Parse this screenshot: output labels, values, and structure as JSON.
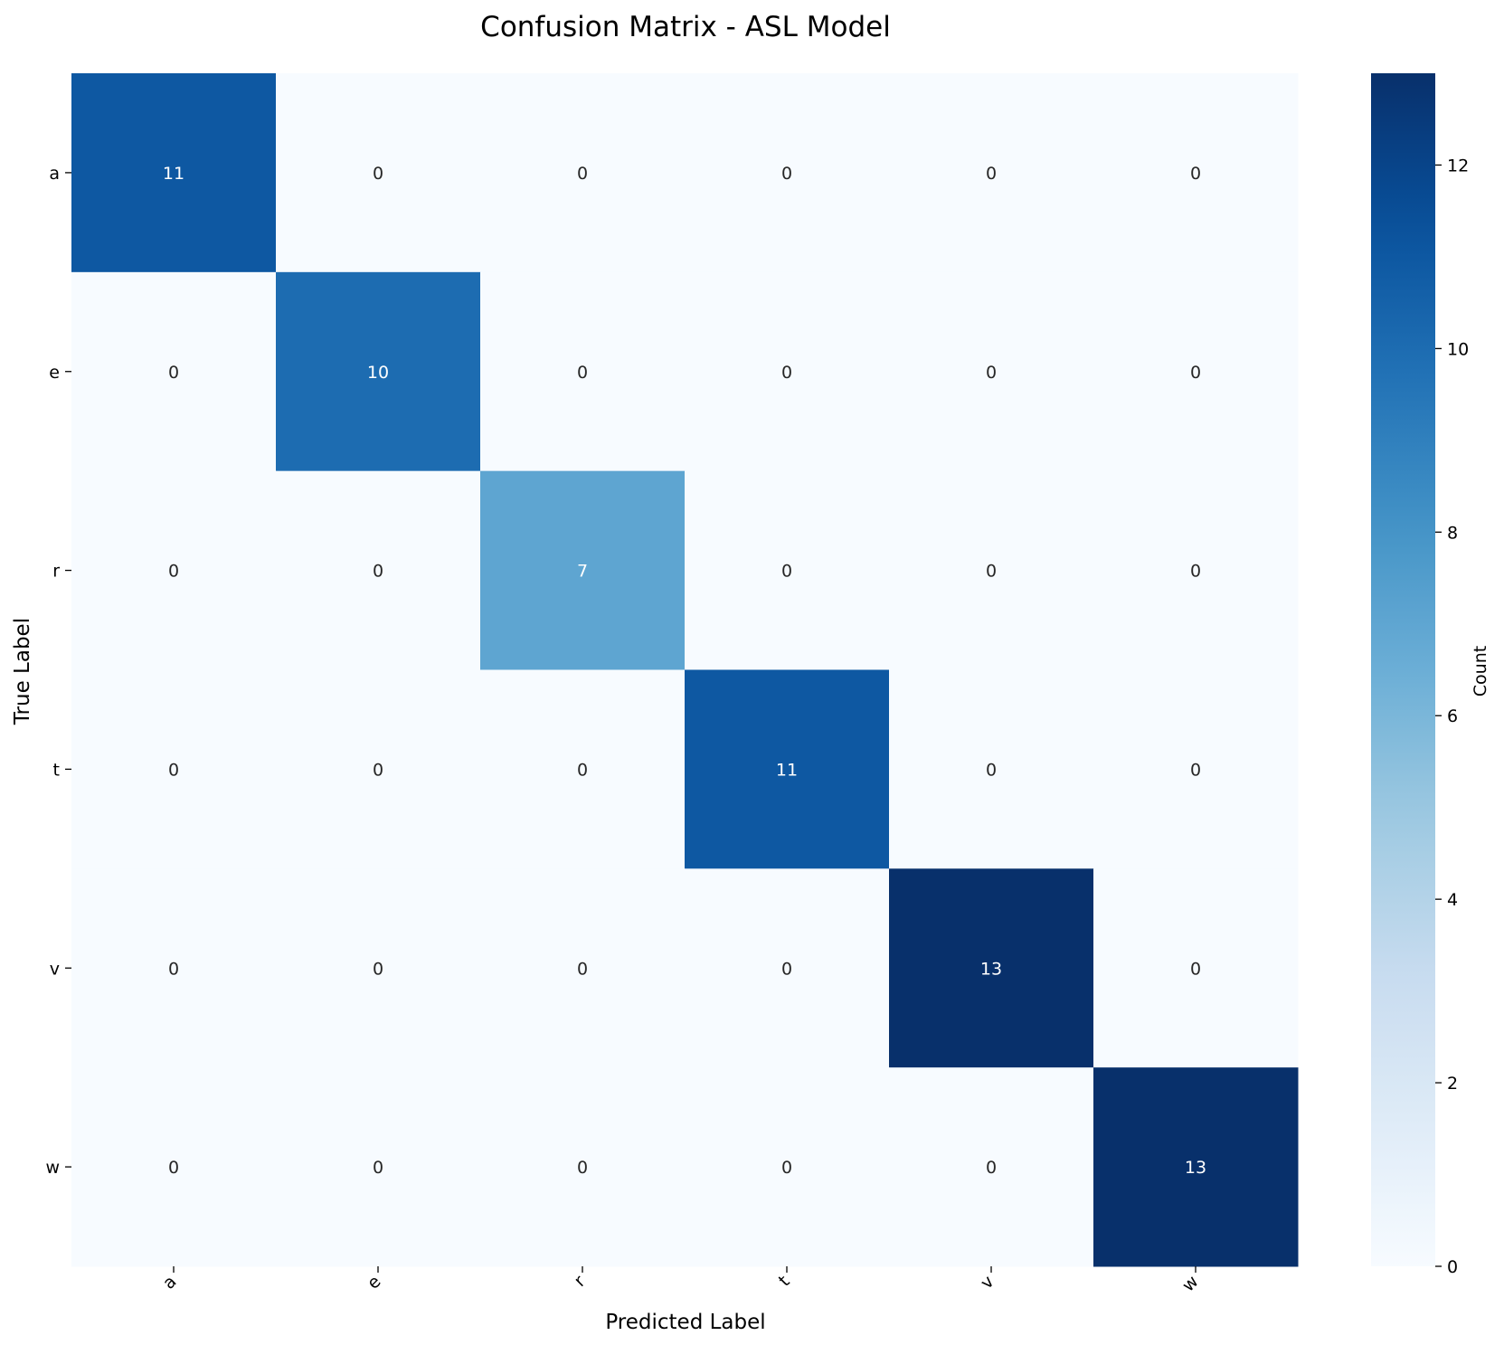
{
  "chart_data": {
    "type": "heatmap",
    "title": "Confusion Matrix - ASL Model",
    "xlabel": "Predicted Label",
    "ylabel": "True Label",
    "x_categories": [
      "a",
      "e",
      "r",
      "t",
      "v",
      "w"
    ],
    "y_categories": [
      "a",
      "e",
      "r",
      "t",
      "v",
      "w"
    ],
    "values": [
      [
        11,
        0,
        0,
        0,
        0,
        0
      ],
      [
        0,
        10,
        0,
        0,
        0,
        0
      ],
      [
        0,
        0,
        7,
        0,
        0,
        0
      ],
      [
        0,
        0,
        0,
        11,
        0,
        0
      ],
      [
        0,
        0,
        0,
        0,
        13,
        0
      ],
      [
        0,
        0,
        0,
        0,
        0,
        13
      ]
    ],
    "colormap": "Blues",
    "colorbar": {
      "label": "Count",
      "min": 0,
      "max": 13,
      "ticks": [
        0,
        2,
        4,
        6,
        8,
        10,
        12
      ]
    },
    "annotations": true,
    "grid": false
  }
}
